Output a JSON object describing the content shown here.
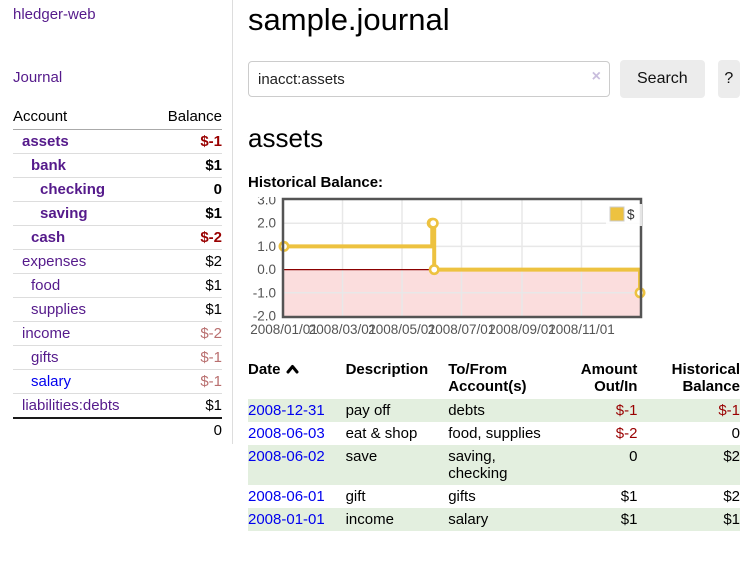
{
  "app": {
    "brand": "hledger-web",
    "nav_journal": "Journal"
  },
  "sidebar": {
    "headers": {
      "account": "Account",
      "balance": "Balance"
    },
    "accounts": [
      {
        "name": "assets",
        "depth": 1,
        "balance": "$-1",
        "bold": true,
        "negative": "strong"
      },
      {
        "name": "bank",
        "depth": 2,
        "balance": "$1",
        "bold": true
      },
      {
        "name": "checking",
        "depth": 3,
        "balance": "0",
        "bold": true
      },
      {
        "name": "saving",
        "depth": 3,
        "balance": "$1",
        "bold": true
      },
      {
        "name": "cash",
        "depth": 2,
        "balance": "$-2",
        "bold": true,
        "negative": "strong"
      },
      {
        "name": "expenses",
        "depth": 1,
        "balance": "$2"
      },
      {
        "name": "food",
        "depth": 2,
        "balance": "$1"
      },
      {
        "name": "supplies",
        "depth": 2,
        "balance": "$1"
      },
      {
        "name": "income",
        "depth": 1,
        "balance": "$-2",
        "negative": "soft"
      },
      {
        "name": "gifts",
        "depth": 2,
        "balance": "$-1",
        "negative": "soft"
      },
      {
        "name": "salary",
        "depth": 2,
        "balance": "$-1",
        "negative": "soft",
        "link": "unvisited"
      },
      {
        "name": "liabilities:debts",
        "depth": 1,
        "balance": "$1"
      }
    ],
    "total": "0"
  },
  "header": {
    "title": "sample.journal"
  },
  "search": {
    "value": "inacct:assets",
    "clear_icon": "×",
    "button_label": "Search",
    "help_label": "?"
  },
  "account_page": {
    "title": "assets",
    "chart_heading": "Historical Balance:"
  },
  "chart_data": {
    "type": "line",
    "step": true,
    "title": "Historical Balance",
    "series": [
      {
        "name": "$",
        "color": "#edc240",
        "points": [
          [
            "2008-01-01",
            1
          ],
          [
            "2008-06-01",
            2
          ],
          [
            "2008-06-02",
            2
          ],
          [
            "2008-06-03",
            0
          ],
          [
            "2008-12-31",
            -1
          ]
        ]
      }
    ],
    "x_range": [
      "2008-01-01",
      "2008-12-31"
    ],
    "x_ticks": [
      {
        "date": "2008-01-01",
        "label": "2008/01/01"
      },
      {
        "date": "2008-03-01",
        "label": "2008/03/01"
      },
      {
        "date": "2008-05-01",
        "label": "2008/05/01"
      },
      {
        "date": "2008-07-01",
        "label": "2008/07/01"
      },
      {
        "date": "2008-09-01",
        "label": "2008/09/01"
      },
      {
        "date": "2008-11-01",
        "label": "2008/11/01"
      }
    ],
    "ylim": [
      -2,
      3
    ],
    "y_ticks": [
      "3.0",
      "2.0",
      "1.0",
      "0.0",
      "-1.0",
      "-2.0"
    ],
    "legend": {
      "label": "$",
      "position": "top-right"
    },
    "grid": true,
    "colors": {
      "border": "#545454",
      "gridline": "#e8e8e8",
      "tick_text": "#545454",
      "negative_region": "#fbdddd",
      "zero_line": "#8b0000",
      "marker_fill": "#ffffff"
    }
  },
  "register": {
    "columns": [
      {
        "label": "Date",
        "sorted": "asc"
      },
      {
        "label": "Description"
      },
      {
        "label": "To/From Account(s)"
      },
      {
        "label": "Amount Out/In",
        "align": "right"
      },
      {
        "label": "Historical Balance",
        "align": "right"
      }
    ],
    "rows": [
      {
        "date": "2008-12-31",
        "description": "pay off",
        "accounts": "debts",
        "amount": "$-1",
        "amount_negative": true,
        "balance": "$-1",
        "balance_negative": true
      },
      {
        "date": "2008-06-03",
        "description": "eat & shop",
        "accounts": "food, supplies",
        "amount": "$-2",
        "amount_negative": true,
        "balance": "0",
        "balance_negative": false
      },
      {
        "date": "2008-06-02",
        "description": "save",
        "accounts": "saving, checking",
        "amount": "0",
        "amount_negative": false,
        "balance": "$2",
        "balance_negative": false
      },
      {
        "date": "2008-06-01",
        "description": "gift",
        "accounts": "gifts",
        "amount": "$1",
        "amount_negative": false,
        "balance": "$2",
        "balance_negative": false
      },
      {
        "date": "2008-01-01",
        "description": "income",
        "accounts": "salary",
        "amount": "$1",
        "amount_negative": false,
        "balance": "$1",
        "balance_negative": false
      }
    ]
  },
  "colors": {
    "link_visited": "#551a8b",
    "link_unvisited": "#0000ee",
    "negative_strong": "#990000",
    "negative_soft": "#b96f6f",
    "row_highlight": "#e3efdf",
    "series_gold": "#edc240"
  }
}
